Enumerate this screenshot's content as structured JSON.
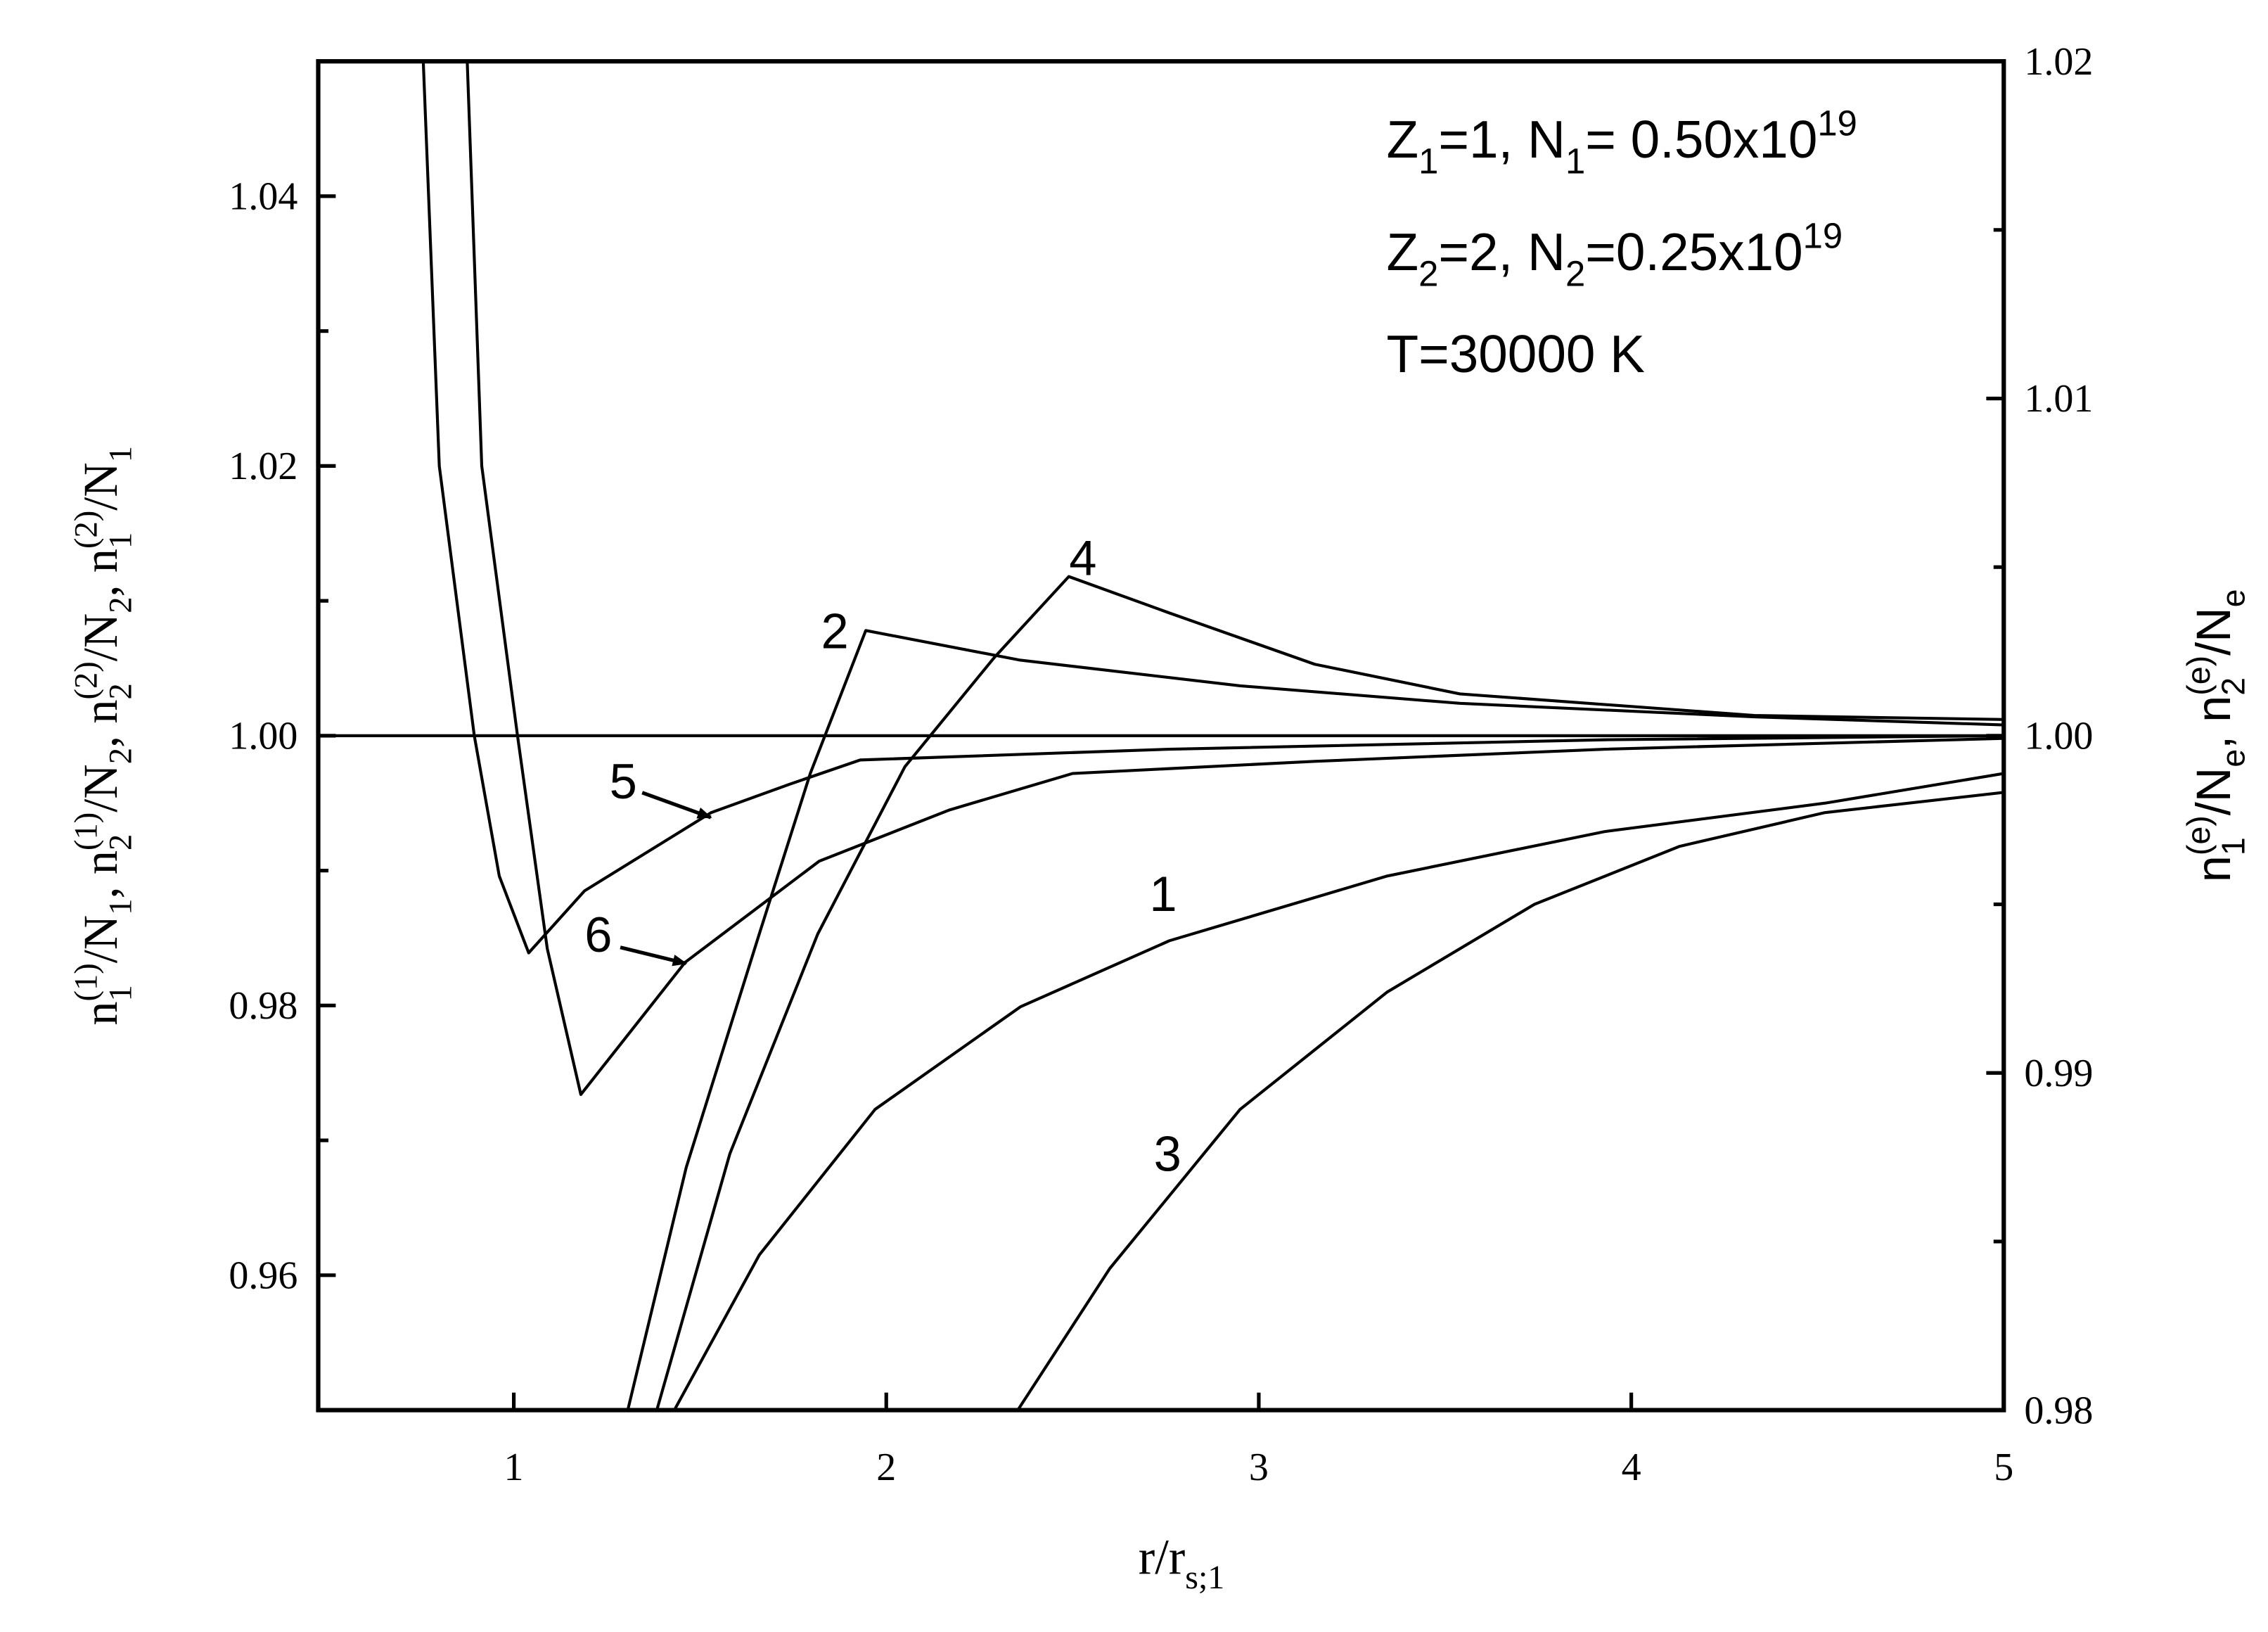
{
  "chart_data": {
    "type": "line",
    "xlim": [
      0.475,
      5
    ],
    "xticks": [
      1,
      2,
      3,
      4,
      5
    ],
    "ylim": [
      0.95,
      1.05
    ],
    "yticks": [
      0.96,
      0.98,
      {
        "value": 1,
        "label": "1.00"
      },
      1.02,
      1.04
    ],
    "yminor": [
      0.97,
      0.99,
      1.01,
      1.03
    ],
    "y2lim": [
      0.98,
      1.02
    ],
    "y2ticks": [
      0.98,
      0.99,
      {
        "value": 1,
        "label": "1.00"
      },
      1.01,
      1.02
    ],
    "y2minor": [
      0.985,
      0.995,
      1.005,
      1.015
    ],
    "color": "#000000",
    "x_label": [
      {
        "text": "r/r",
        "shift": "base"
      },
      {
        "text": "s;1",
        "shift": "sub"
      }
    ],
    "y_label": [
      {
        "text": "n",
        "shift": "base"
      },
      {
        "text": "1",
        "shift": "sub"
      },
      {
        "text": "(1)",
        "shift": "sup"
      },
      {
        "text": "/N",
        "shift": "base"
      },
      {
        "text": "1",
        "shift": "sub"
      },
      {
        "text": ", n",
        "shift": "base"
      },
      {
        "text": "2",
        "shift": "sub"
      },
      {
        "text": "(1)",
        "shift": "sup"
      },
      {
        "text": "/N",
        "shift": "base"
      },
      {
        "text": "2",
        "shift": "sub"
      },
      {
        "text": ", n",
        "shift": "base"
      },
      {
        "text": "2",
        "shift": "sub"
      },
      {
        "text": "(2)",
        "shift": "sup"
      },
      {
        "text": "/N",
        "shift": "base"
      },
      {
        "text": "2",
        "shift": "sub"
      },
      {
        "text": ", n",
        "shift": "base"
      },
      {
        "text": "1",
        "shift": "sub"
      },
      {
        "text": "(2)",
        "shift": "sup"
      },
      {
        "text": "/N",
        "shift": "base"
      },
      {
        "text": "1",
        "shift": "sub"
      }
    ],
    "y2_label": [
      {
        "text": "n",
        "shift": "base"
      },
      {
        "text": "1",
        "shift": "sub"
      },
      {
        "text": "(e)",
        "shift": "sup"
      },
      {
        "text": "/N",
        "shift": "base"
      },
      {
        "text": "e",
        "shift": "sub"
      },
      {
        "text": ", n",
        "shift": "base"
      },
      {
        "text": "2",
        "shift": "sub"
      },
      {
        "text": "(e)",
        "shift": "sup"
      },
      {
        "text": "/N",
        "shift": "base"
      },
      {
        "text": "e",
        "shift": "sub"
      }
    ],
    "annotations": [
      [
        {
          "text": "Z",
          "shift": "base"
        },
        {
          "text": "1",
          "shift": "sub"
        },
        {
          "text": "=1, N",
          "shift": "base"
        },
        {
          "text": "1",
          "shift": "sub"
        },
        {
          "text": "= 0.50x10",
          "shift": "base"
        },
        {
          "text": "19",
          "shift": "sup"
        }
      ],
      [
        {
          "text": "Z",
          "shift": "base"
        },
        {
          "text": "2",
          "shift": "sub"
        },
        {
          "text": "=2, N",
          "shift": "base"
        },
        {
          "text": "2",
          "shift": "sub"
        },
        {
          "text": "=0.25x10",
          "shift": "base"
        },
        {
          "text": "19",
          "shift": "sup"
        }
      ],
      [
        {
          "text": "T=30000 K",
          "shift": "base"
        }
      ]
    ],
    "series": [
      {
        "label": "1",
        "x": [
          1.431,
          1.659,
          1.97,
          2.36,
          2.76,
          3.345,
          3.93,
          4.52,
          5
        ],
        "values": [
          0.95,
          0.9615,
          0.9723,
          0.9799,
          0.9848,
          0.9896,
          0.9929,
          0.995,
          0.9972
        ]
      },
      {
        "label": "2",
        "x": [
          1.306,
          1.463,
          1.659,
          1.796,
          1.945,
          2.36,
          2.95,
          3.54,
          4.33,
          5
        ],
        "values": [
          0.95,
          0.968,
          0.9853,
          0.9972,
          1.0078,
          1.0056,
          1.0037,
          1.0024,
          1.0014,
          1.0008
        ]
      },
      {
        "label": "3",
        "x": [
          2.353,
          2.6,
          2.95,
          3.345,
          3.74,
          4.13,
          4.52,
          5
        ],
        "values": [
          0.95,
          0.9605,
          0.9723,
          0.981,
          0.9875,
          0.9918,
          0.9943,
          0.9958
        ]
      },
      {
        "label": "4",
        "x": [
          1.384,
          1.58,
          1.816,
          2.05,
          2.29,
          2.49,
          2.76,
          3.15,
          3.54,
          4.33,
          5
        ],
        "values": [
          0.95,
          0.969,
          0.9853,
          0.9977,
          1.0058,
          1.0118,
          1.0091,
          1.0053,
          1.0031,
          1.0015,
          1.0012
        ]
      },
      {
        "label": "5",
        "x": [
          0.757,
          0.8,
          0.894,
          0.961,
          1.04,
          1.19,
          1.53,
          1.74,
          1.93,
          2.76,
          3.93,
          5
        ],
        "values": [
          1.05,
          1.02,
          1.0,
          0.9896,
          0.9839,
          0.9885,
          0.9943,
          0.9964,
          0.9982,
          0.999,
          0.9997,
          1.0
        ]
      },
      {
        "label": "6",
        "x": [
          0.875,
          0.914,
          1.01,
          1.09,
          1.18,
          1.46,
          1.82,
          2.17,
          2.5,
          3.15,
          3.93,
          5
        ],
        "values": [
          1.05,
          1.02,
          1.0,
          0.9842,
          0.9734,
          0.9832,
          0.9907,
          0.9945,
          0.9972,
          0.9981,
          0.999,
          0.9998
        ]
      },
      {
        "x": [
          0.475,
          5
        ],
        "values": [
          1.0,
          1.0
        ]
      }
    ]
  }
}
